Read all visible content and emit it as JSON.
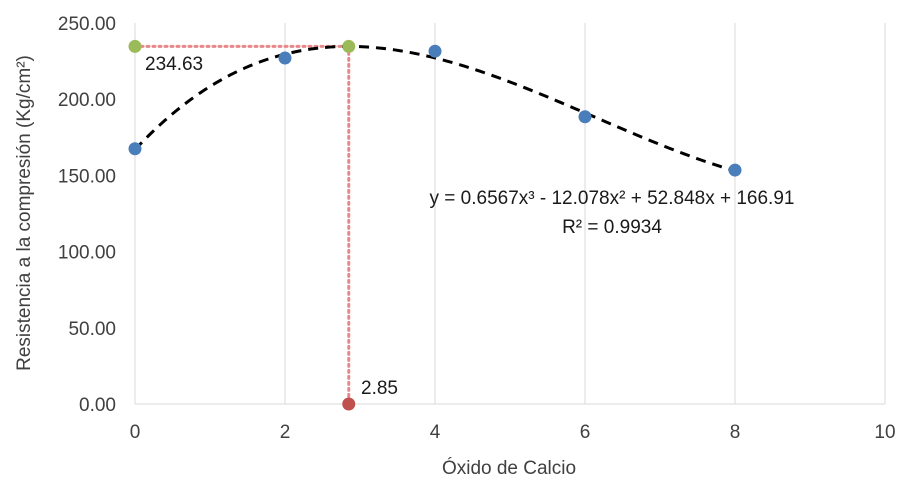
{
  "chart_data": {
    "type": "scatter",
    "xlabel": "Óxido de Calcio",
    "ylabel": "Resistencia a la compresión (Kg/cm²)",
    "xlim": [
      0,
      10
    ],
    "ylim": [
      0,
      250
    ],
    "x_ticks": [
      0,
      2,
      4,
      6,
      8,
      10
    ],
    "y_ticks": [
      0,
      50,
      100,
      150,
      200,
      250
    ],
    "x_tick_labels": [
      "0",
      "2",
      "4",
      "6",
      "8",
      "10"
    ],
    "y_tick_labels": [
      "0.00",
      "50.00",
      "100.00",
      "150.00",
      "200.00",
      "250.00"
    ],
    "grid": "vertical",
    "series": [
      {
        "color": "#4a7ebb",
        "points": [
          {
            "x": 0,
            "y": 167.5
          },
          {
            "x": 2,
            "y": 227
          },
          {
            "x": 4,
            "y": 231.5
          },
          {
            "x": 6,
            "y": 188.5
          },
          {
            "x": 8,
            "y": 153.5
          }
        ]
      }
    ],
    "trendline": {
      "type": "polynomial",
      "coefficients": [
        0.6567,
        -12.078,
        52.848,
        166.91
      ],
      "x_range": [
        0,
        8
      ],
      "color": "#000000",
      "style": "dashed",
      "equation_label": "y = 0.6567x³ - 12.078x² + 52.848x + 166.91",
      "r2_label": "R² = 0.9934"
    },
    "annotations": {
      "optimum": {
        "x": 2.85,
        "y": 234.63,
        "y_label": "234.63",
        "x_label": "2.85",
        "guide_color": "#e8888a",
        "marker_color": "#9bbb59",
        "axis_marker_color": "#c0504d"
      }
    }
  }
}
